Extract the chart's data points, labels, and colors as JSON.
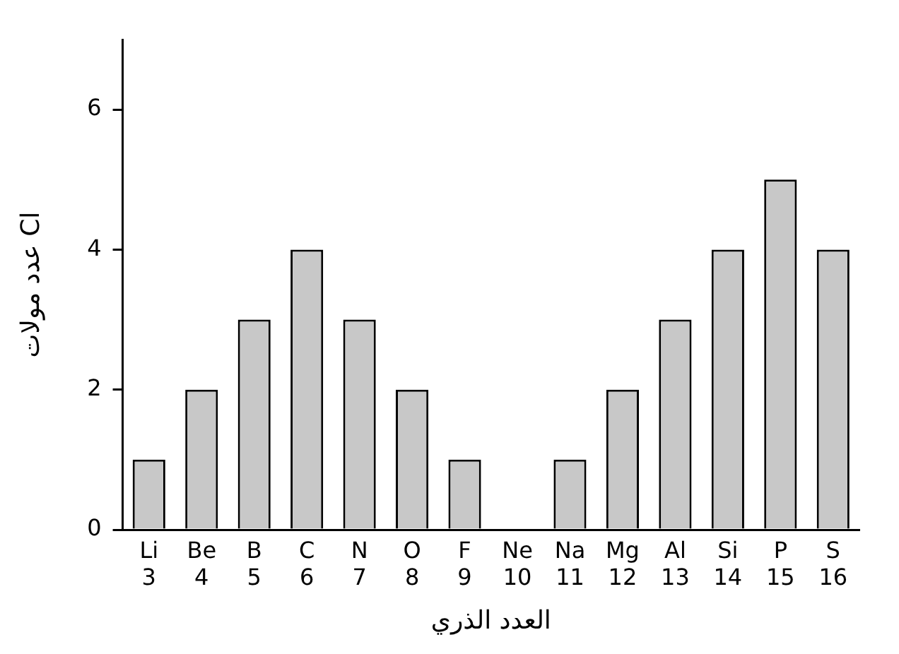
{
  "chart_data": {
    "type": "bar",
    "xlabel": "العدد الذري",
    "ylabel": "عدد مولات Cl",
    "categories": [
      "Li\n3",
      "Be\n4",
      "B\n5",
      "C\n6",
      "N\n7",
      "O\n8",
      "F\n9",
      "Ne\n10",
      "Na\n11",
      "Mg\n12",
      "Al\n13",
      "Si\n14",
      "P\n15",
      "S\n16"
    ],
    "values": [
      1,
      2,
      3,
      4,
      3,
      2,
      1,
      0,
      1,
      2,
      3,
      4,
      5,
      4
    ],
    "color": "#c8c8c8",
    "ylim": [
      0,
      7
    ],
    "yticks": [
      0,
      2,
      4,
      6
    ],
    "grid": false,
    "legend": false
  }
}
